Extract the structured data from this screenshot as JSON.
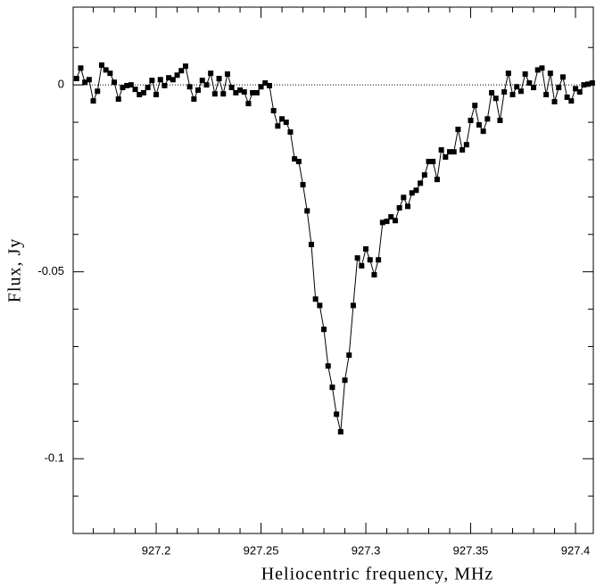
{
  "chart_data": {
    "type": "line",
    "x_label": "Heliocentric frequency, MHz",
    "y_label": "Flux, Jy",
    "xlim": [
      927.1604,
      927.4085
    ],
    "ylim": [
      -0.12,
      0.0208
    ],
    "xticks": [
      927.2,
      927.25,
      927.3,
      927.35,
      927.4
    ],
    "yticks": [
      0,
      -0.05,
      -0.1
    ],
    "x_minor_ticks": [
      927.17,
      927.18,
      927.19,
      927.21,
      927.22,
      927.23,
      927.24,
      927.26,
      927.27,
      927.28,
      927.29,
      927.31,
      927.32,
      927.33,
      927.34,
      927.36,
      927.37,
      927.38,
      927.39
    ],
    "y_minor_ticks": [
      0.01,
      -0.01,
      -0.02,
      -0.03,
      -0.04,
      -0.06,
      -0.07,
      -0.08,
      -0.09,
      -0.11
    ],
    "reference_line": 0,
    "color": "#000000",
    "x": [
      927.162,
      927.164,
      927.166,
      927.168,
      927.17,
      927.172,
      927.174,
      927.176,
      927.178,
      927.18,
      927.182,
      927.184,
      927.186,
      927.188,
      927.19,
      927.192,
      927.194,
      927.196,
      927.198,
      927.2,
      927.202,
      927.204,
      927.206,
      927.208,
      927.21,
      927.212,
      927.214,
      927.216,
      927.218,
      927.22,
      927.222,
      927.224,
      927.226,
      927.228,
      927.23,
      927.232,
      927.234,
      927.236,
      927.238,
      927.24,
      927.242,
      927.244,
      927.246,
      927.248,
      927.25,
      927.252,
      927.254,
      927.256,
      927.258,
      927.26,
      927.262,
      927.264,
      927.266,
      927.268,
      927.27,
      927.272,
      927.274,
      927.276,
      927.278,
      927.28,
      927.282,
      927.284,
      927.286,
      927.288,
      927.29,
      927.292,
      927.294,
      927.296,
      927.298,
      927.3,
      927.302,
      927.304,
      927.306,
      927.308,
      927.31,
      927.312,
      927.314,
      927.316,
      927.318,
      927.32,
      927.322,
      927.324,
      927.326,
      927.328,
      927.33,
      927.332,
      927.334,
      927.336,
      927.338,
      927.34,
      927.342,
      927.344,
      927.346,
      927.348,
      927.35,
      927.352,
      927.354,
      927.356,
      927.358,
      927.36,
      927.362,
      927.364,
      927.366,
      927.368,
      927.37,
      927.372,
      927.374,
      927.376,
      927.378,
      927.38,
      927.382,
      927.384,
      927.386,
      927.388,
      927.39,
      927.392,
      927.394,
      927.396,
      927.398,
      927.4,
      927.402,
      927.404,
      927.406,
      927.408
    ],
    "values": [
      0.0017,
      0.0045,
      0.0007,
      0.0014,
      -0.0043,
      -0.0017,
      0.0053,
      0.004,
      0.0031,
      0.0007,
      -0.0038,
      -0.0007,
      -0.0002,
      0,
      -0.0012,
      -0.0026,
      -0.0021,
      -0.0007,
      0.0012,
      -0.0026,
      0.0014,
      -0.0002,
      0.0019,
      0.0014,
      0.0026,
      0.0038,
      0.005,
      -0.0005,
      -0.0038,
      -0.0014,
      0.0012,
      0,
      0.0031,
      -0.0024,
      0.0017,
      -0.0024,
      0.0029,
      -0.0007,
      -0.0021,
      -0.0014,
      -0.0019,
      -0.005,
      -0.0021,
      -0.0021,
      -0.0005,
      0.0005,
      -0.0002,
      -0.0069,
      -0.011,
      -0.0091,
      -0.01,
      -0.0126,
      -0.0198,
      -0.0205,
      -0.0267,
      -0.0337,
      -0.0427,
      -0.0573,
      -0.059,
      -0.0654,
      -0.0752,
      -0.0809,
      -0.0881,
      -0.0928,
      -0.079,
      -0.0723,
      -0.059,
      -0.0463,
      -0.0484,
      -0.0439,
      -0.0468,
      -0.0508,
      -0.0468,
      -0.0368,
      -0.0365,
      -0.0353,
      -0.0363,
      -0.0329,
      -0.0301,
      -0.0325,
      -0.0289,
      -0.0282,
      -0.0263,
      -0.0241,
      -0.0205,
      -0.0205,
      -0.0253,
      -0.0174,
      -0.0193,
      -0.0179,
      -0.0179,
      -0.0119,
      -0.0174,
      -0.016,
      -0.0095,
      -0.0055,
      -0.0107,
      -0.0124,
      -0.0091,
      -0.0021,
      -0.0036,
      -0.0095,
      -0.0019,
      0.0031,
      -0.0026,
      -0.0005,
      -0.0017,
      0.0029,
      0.0005,
      -0.0007,
      0.004,
      0.0045,
      -0.0026,
      0.0031,
      -0.0045,
      -0.0007,
      0.0021,
      -0.0033,
      -0.0043,
      -0.001,
      -0.0019,
      0,
      0.0002,
      0.0005
    ]
  }
}
